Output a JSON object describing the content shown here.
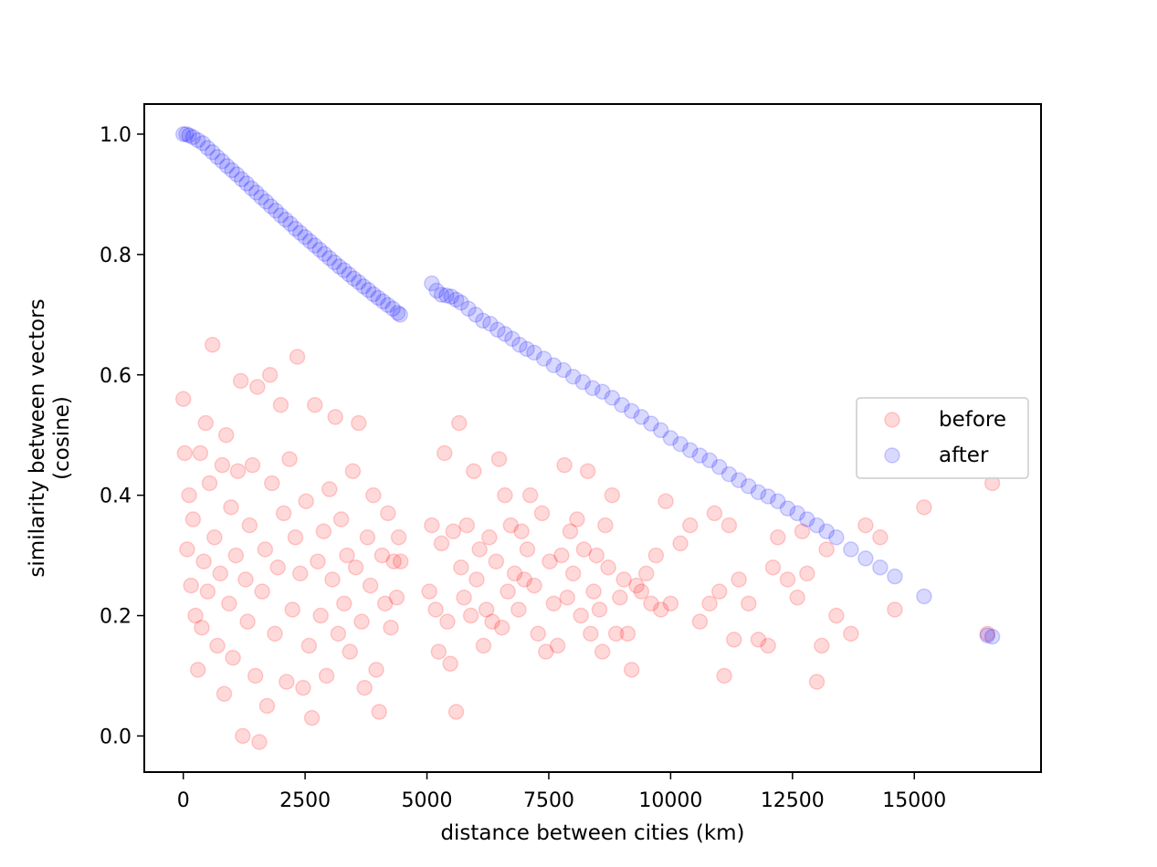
{
  "chart_data": {
    "type": "scatter",
    "title": "",
    "xlabel": "distance between cities (km)",
    "ylabel_lines": [
      "similarity between vectors",
      "(cosine)"
    ],
    "xlim": [
      -800,
      17600
    ],
    "ylim": [
      -0.06,
      1.05
    ],
    "xticks": [
      0,
      2500,
      5000,
      7500,
      10000,
      12500,
      15000
    ],
    "xtick_labels": [
      "0",
      "2500",
      "5000",
      "7500",
      "10000",
      "12500",
      "15000"
    ],
    "yticks": [
      0.0,
      0.2,
      0.4,
      0.6,
      0.8,
      1.0
    ],
    "ytick_labels": [
      "0.0",
      "0.2",
      "0.4",
      "0.6",
      "0.8",
      "1.0"
    ],
    "grid": false,
    "legend": {
      "position": "center-right",
      "entries": [
        "before",
        "after"
      ]
    },
    "series": [
      {
        "name": "before",
        "color": "#ff0000",
        "alpha": 0.15,
        "marker": "circle",
        "points": [
          [
            0,
            0.56
          ],
          [
            30,
            0.47
          ],
          [
            80,
            0.31
          ],
          [
            120,
            0.4
          ],
          [
            160,
            0.25
          ],
          [
            200,
            0.36
          ],
          [
            250,
            0.2
          ],
          [
            300,
            0.11
          ],
          [
            350,
            0.47
          ],
          [
            380,
            0.18
          ],
          [
            420,
            0.29
          ],
          [
            460,
            0.52
          ],
          [
            500,
            0.24
          ],
          [
            540,
            0.42
          ],
          [
            600,
            0.65
          ],
          [
            640,
            0.33
          ],
          [
            700,
            0.15
          ],
          [
            760,
            0.27
          ],
          [
            800,
            0.45
          ],
          [
            840,
            0.07
          ],
          [
            880,
            0.5
          ],
          [
            940,
            0.22
          ],
          [
            980,
            0.38
          ],
          [
            1020,
            0.13
          ],
          [
            1080,
            0.3
          ],
          [
            1120,
            0.44
          ],
          [
            1180,
            0.59
          ],
          [
            1220,
            0.0
          ],
          [
            1280,
            0.26
          ],
          [
            1320,
            0.19
          ],
          [
            1360,
            0.35
          ],
          [
            1420,
            0.45
          ],
          [
            1480,
            0.1
          ],
          [
            1520,
            0.58
          ],
          [
            1560,
            -0.01
          ],
          [
            1620,
            0.24
          ],
          [
            1680,
            0.31
          ],
          [
            1720,
            0.05
          ],
          [
            1780,
            0.6
          ],
          [
            1820,
            0.42
          ],
          [
            1880,
            0.17
          ],
          [
            1940,
            0.28
          ],
          [
            2000,
            0.55
          ],
          [
            2060,
            0.37
          ],
          [
            2120,
            0.09
          ],
          [
            2180,
            0.46
          ],
          [
            2240,
            0.21
          ],
          [
            2300,
            0.33
          ],
          [
            2340,
            0.63
          ],
          [
            2400,
            0.27
          ],
          [
            2460,
            0.08
          ],
          [
            2520,
            0.39
          ],
          [
            2580,
            0.15
          ],
          [
            2640,
            0.03
          ],
          [
            2700,
            0.55
          ],
          [
            2760,
            0.29
          ],
          [
            2820,
            0.2
          ],
          [
            2880,
            0.34
          ],
          [
            2940,
            0.1
          ],
          [
            3000,
            0.41
          ],
          [
            3060,
            0.26
          ],
          [
            3120,
            0.53
          ],
          [
            3180,
            0.17
          ],
          [
            3240,
            0.36
          ],
          [
            3300,
            0.22
          ],
          [
            3360,
            0.3
          ],
          [
            3420,
            0.14
          ],
          [
            3480,
            0.44
          ],
          [
            3540,
            0.28
          ],
          [
            3600,
            0.52
          ],
          [
            3660,
            0.19
          ],
          [
            3720,
            0.08
          ],
          [
            3780,
            0.33
          ],
          [
            3840,
            0.25
          ],
          [
            3900,
            0.4
          ],
          [
            3960,
            0.11
          ],
          [
            4020,
            0.04
          ],
          [
            4080,
            0.3
          ],
          [
            4140,
            0.22
          ],
          [
            4200,
            0.37
          ],
          [
            4260,
            0.18
          ],
          [
            4320,
            0.29
          ],
          [
            4380,
            0.23
          ],
          [
            4420,
            0.33
          ],
          [
            4460,
            0.29
          ],
          [
            5050,
            0.24
          ],
          [
            5100,
            0.35
          ],
          [
            5180,
            0.21
          ],
          [
            5240,
            0.14
          ],
          [
            5300,
            0.32
          ],
          [
            5360,
            0.47
          ],
          [
            5420,
            0.19
          ],
          [
            5480,
            0.12
          ],
          [
            5540,
            0.34
          ],
          [
            5600,
            0.04
          ],
          [
            5660,
            0.52
          ],
          [
            5700,
            0.28
          ],
          [
            5760,
            0.23
          ],
          [
            5820,
            0.35
          ],
          [
            5900,
            0.2
          ],
          [
            5960,
            0.44
          ],
          [
            6020,
            0.26
          ],
          [
            6080,
            0.31
          ],
          [
            6160,
            0.15
          ],
          [
            6220,
            0.21
          ],
          [
            6280,
            0.33
          ],
          [
            6340,
            0.19
          ],
          [
            6420,
            0.29
          ],
          [
            6480,
            0.46
          ],
          [
            6540,
            0.18
          ],
          [
            6600,
            0.4
          ],
          [
            6660,
            0.24
          ],
          [
            6720,
            0.35
          ],
          [
            6800,
            0.27
          ],
          [
            6880,
            0.21
          ],
          [
            6940,
            0.34
          ],
          [
            7000,
            0.26
          ],
          [
            7060,
            0.31
          ],
          [
            7120,
            0.4
          ],
          [
            7200,
            0.25
          ],
          [
            7280,
            0.17
          ],
          [
            7360,
            0.37
          ],
          [
            7440,
            0.14
          ],
          [
            7520,
            0.29
          ],
          [
            7600,
            0.22
          ],
          [
            7680,
            0.15
          ],
          [
            7760,
            0.3
          ],
          [
            7820,
            0.45
          ],
          [
            7880,
            0.23
          ],
          [
            7940,
            0.34
          ],
          [
            8000,
            0.27
          ],
          [
            8080,
            0.36
          ],
          [
            8160,
            0.2
          ],
          [
            8220,
            0.31
          ],
          [
            8300,
            0.44
          ],
          [
            8360,
            0.17
          ],
          [
            8420,
            0.24
          ],
          [
            8480,
            0.3
          ],
          [
            8540,
            0.21
          ],
          [
            8600,
            0.14
          ],
          [
            8660,
            0.35
          ],
          [
            8720,
            0.28
          ],
          [
            8800,
            0.4
          ],
          [
            8880,
            0.17
          ],
          [
            8960,
            0.23
          ],
          [
            9040,
            0.26
          ],
          [
            9120,
            0.17
          ],
          [
            9200,
            0.11
          ],
          [
            9300,
            0.25
          ],
          [
            9400,
            0.24
          ],
          [
            9500,
            0.27
          ],
          [
            9600,
            0.22
          ],
          [
            9700,
            0.3
          ],
          [
            9800,
            0.21
          ],
          [
            9900,
            0.39
          ],
          [
            10000,
            0.22
          ],
          [
            10200,
            0.32
          ],
          [
            10400,
            0.35
          ],
          [
            10600,
            0.19
          ],
          [
            10800,
            0.22
          ],
          [
            10900,
            0.37
          ],
          [
            11000,
            0.24
          ],
          [
            11100,
            0.1
          ],
          [
            11200,
            0.35
          ],
          [
            11300,
            0.16
          ],
          [
            11400,
            0.26
          ],
          [
            11600,
            0.22
          ],
          [
            11800,
            0.16
          ],
          [
            12000,
            0.15
          ],
          [
            12100,
            0.28
          ],
          [
            12200,
            0.33
          ],
          [
            12400,
            0.26
          ],
          [
            12600,
            0.23
          ],
          [
            12700,
            0.34
          ],
          [
            12800,
            0.27
          ],
          [
            13000,
            0.09
          ],
          [
            13100,
            0.15
          ],
          [
            13200,
            0.31
          ],
          [
            13400,
            0.2
          ],
          [
            13700,
            0.17
          ],
          [
            14000,
            0.35
          ],
          [
            14300,
            0.33
          ],
          [
            14600,
            0.21
          ],
          [
            15200,
            0.38
          ],
          [
            16500,
            0.17
          ],
          [
            16600,
            0.42
          ]
        ]
      },
      {
        "name": "after",
        "color": "#0000ff",
        "alpha": 0.15,
        "marker": "circle",
        "points": [
          [
            0,
            1.0
          ],
          [
            60,
            1.0
          ],
          [
            120,
            0.998
          ],
          [
            200,
            0.995
          ],
          [
            300,
            0.99
          ],
          [
            400,
            0.985
          ],
          [
            500,
            0.977
          ],
          [
            600,
            0.97
          ],
          [
            700,
            0.962
          ],
          [
            800,
            0.955
          ],
          [
            900,
            0.947
          ],
          [
            1000,
            0.94
          ],
          [
            1100,
            0.933
          ],
          [
            1200,
            0.925
          ],
          [
            1300,
            0.918
          ],
          [
            1400,
            0.91
          ],
          [
            1500,
            0.903
          ],
          [
            1600,
            0.895
          ],
          [
            1700,
            0.888
          ],
          [
            1800,
            0.88
          ],
          [
            1900,
            0.873
          ],
          [
            2000,
            0.865
          ],
          [
            2100,
            0.858
          ],
          [
            2200,
            0.851
          ],
          [
            2300,
            0.843
          ],
          [
            2400,
            0.836
          ],
          [
            2500,
            0.829
          ],
          [
            2600,
            0.822
          ],
          [
            2700,
            0.815
          ],
          [
            2800,
            0.808
          ],
          [
            2900,
            0.801
          ],
          [
            3000,
            0.794
          ],
          [
            3100,
            0.787
          ],
          [
            3200,
            0.78
          ],
          [
            3300,
            0.774
          ],
          [
            3400,
            0.767
          ],
          [
            3500,
            0.76
          ],
          [
            3600,
            0.754
          ],
          [
            3700,
            0.747
          ],
          [
            3800,
            0.741
          ],
          [
            3900,
            0.734
          ],
          [
            4000,
            0.728
          ],
          [
            4100,
            0.722
          ],
          [
            4200,
            0.716
          ],
          [
            4300,
            0.71
          ],
          [
            4400,
            0.703
          ],
          [
            4450,
            0.7
          ],
          [
            5100,
            0.752
          ],
          [
            5200,
            0.74
          ],
          [
            5300,
            0.733
          ],
          [
            5400,
            0.732
          ],
          [
            5500,
            0.73
          ],
          [
            5600,
            0.725
          ],
          [
            5700,
            0.72
          ],
          [
            5850,
            0.71
          ],
          [
            6000,
            0.7
          ],
          [
            6150,
            0.69
          ],
          [
            6300,
            0.685
          ],
          [
            6450,
            0.675
          ],
          [
            6600,
            0.668
          ],
          [
            6750,
            0.66
          ],
          [
            6900,
            0.65
          ],
          [
            7050,
            0.643
          ],
          [
            7200,
            0.637
          ],
          [
            7400,
            0.627
          ],
          [
            7600,
            0.616
          ],
          [
            7800,
            0.608
          ],
          [
            8000,
            0.597
          ],
          [
            8200,
            0.588
          ],
          [
            8400,
            0.578
          ],
          [
            8600,
            0.572
          ],
          [
            8800,
            0.562
          ],
          [
            9000,
            0.55
          ],
          [
            9200,
            0.54
          ],
          [
            9400,
            0.53
          ],
          [
            9600,
            0.519
          ],
          [
            9800,
            0.508
          ],
          [
            10000,
            0.495
          ],
          [
            10200,
            0.485
          ],
          [
            10400,
            0.475
          ],
          [
            10600,
            0.466
          ],
          [
            10800,
            0.458
          ],
          [
            11000,
            0.447
          ],
          [
            11200,
            0.435
          ],
          [
            11400,
            0.425
          ],
          [
            11600,
            0.415
          ],
          [
            11800,
            0.405
          ],
          [
            12000,
            0.398
          ],
          [
            12200,
            0.39
          ],
          [
            12400,
            0.378
          ],
          [
            12600,
            0.37
          ],
          [
            12800,
            0.36
          ],
          [
            13000,
            0.35
          ],
          [
            13200,
            0.34
          ],
          [
            13400,
            0.33
          ],
          [
            13700,
            0.31
          ],
          [
            14000,
            0.295
          ],
          [
            14300,
            0.28
          ],
          [
            14600,
            0.265
          ],
          [
            15200,
            0.232
          ],
          [
            16500,
            0.167
          ],
          [
            16600,
            0.165
          ]
        ]
      }
    ]
  }
}
